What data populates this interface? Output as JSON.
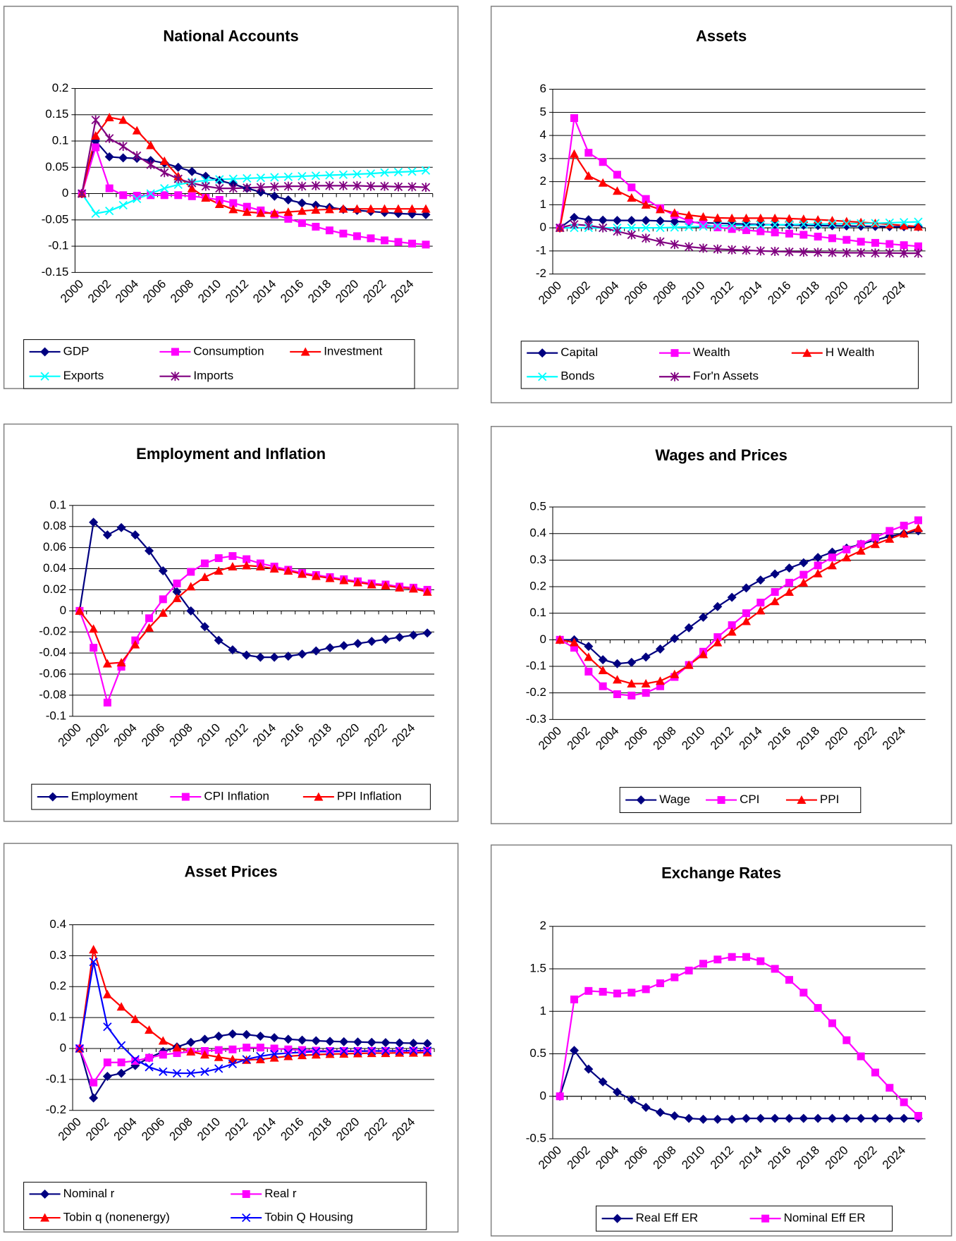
{
  "chart_data": [
    {
      "type": "line",
      "title": "National Accounts",
      "categories": [
        "2000",
        null,
        "2002",
        null,
        "2004",
        null,
        "2006",
        null,
        "2008",
        null,
        "2010",
        null,
        "2012",
        null,
        "2014",
        null,
        "2016",
        null,
        "2018",
        null,
        "2020",
        null,
        "2022",
        null,
        "2024",
        null
      ],
      "ylim": [
        -0.15,
        0.2
      ],
      "yticks": [
        -0.15,
        -0.1,
        -0.05,
        0,
        0.05,
        0.1,
        0.15,
        0.2
      ],
      "grid": true,
      "series": [
        {
          "name": "GDP",
          "color": "#000080",
          "marker": "diamond",
          "values": [
            0,
            0.1,
            0.07,
            0.068,
            0.067,
            0.063,
            0.058,
            0.05,
            0.042,
            0.033,
            0.025,
            0.018,
            0.01,
            0.003,
            -0.005,
            -0.012,
            -0.018,
            -0.022,
            -0.026,
            -0.03,
            -0.032,
            -0.034,
            -0.036,
            -0.038,
            -0.039,
            -0.04
          ]
        },
        {
          "name": "Consumption",
          "color": "#ff00ff",
          "marker": "square",
          "values": [
            0,
            0.088,
            0.01,
            -0.003,
            -0.004,
            -0.003,
            -0.003,
            -0.003,
            -0.005,
            -0.008,
            -0.012,
            -0.018,
            -0.025,
            -0.032,
            -0.04,
            -0.048,
            -0.056,
            -0.063,
            -0.07,
            -0.076,
            -0.081,
            -0.085,
            -0.089,
            -0.092,
            -0.095,
            -0.097
          ]
        },
        {
          "name": "Investment",
          "color": "#ff0000",
          "marker": "triangle",
          "values": [
            0,
            0.11,
            0.145,
            0.14,
            0.12,
            0.092,
            0.062,
            0.033,
            0.01,
            -0.008,
            -0.02,
            -0.03,
            -0.035,
            -0.037,
            -0.037,
            -0.035,
            -0.033,
            -0.031,
            -0.03,
            -0.029,
            -0.029,
            -0.029,
            -0.029,
            -0.029,
            -0.029,
            -0.029
          ]
        },
        {
          "name": "Exports",
          "color": "#00ffff",
          "marker": "x",
          "values": [
            0,
            -0.038,
            -0.033,
            -0.022,
            -0.01,
            0,
            0.01,
            0.017,
            0.022,
            0.025,
            0.027,
            0.028,
            0.029,
            0.03,
            0.031,
            0.032,
            0.033,
            0.034,
            0.035,
            0.036,
            0.037,
            0.038,
            0.04,
            0.041,
            0.042,
            0.044
          ]
        },
        {
          "name": "Imports",
          "color": "#800080",
          "marker": "asterisk",
          "values": [
            0,
            0.14,
            0.105,
            0.09,
            0.072,
            0.055,
            0.04,
            0.028,
            0.02,
            0.014,
            0.01,
            0.01,
            0.011,
            0.012,
            0.013,
            0.014,
            0.014,
            0.015,
            0.015,
            0.015,
            0.015,
            0.014,
            0.014,
            0.013,
            0.013,
            0.012
          ]
        }
      ]
    },
    {
      "type": "line",
      "title": "Assets",
      "categories": [
        "2000",
        null,
        "2002",
        null,
        "2004",
        null,
        "2006",
        null,
        "2008",
        null,
        "2010",
        null,
        "2012",
        null,
        "2014",
        null,
        "2016",
        null,
        "2018",
        null,
        "2020",
        null,
        "2022",
        null,
        "2024",
        null
      ],
      "ylim": [
        -2,
        6
      ],
      "yticks": [
        -2,
        -1,
        0,
        1,
        2,
        3,
        4,
        5,
        6
      ],
      "grid": true,
      "series": [
        {
          "name": "Capital",
          "color": "#000080",
          "marker": "diamond",
          "values": [
            0,
            0.45,
            0.35,
            0.33,
            0.32,
            0.32,
            0.32,
            0.3,
            0.28,
            0.25,
            0.22,
            0.2,
            0.18,
            0.16,
            0.14,
            0.13,
            0.12,
            0.11,
            0.1,
            0.09,
            0.08,
            0.07,
            0.06,
            0.05,
            0.05,
            0.04
          ]
        },
        {
          "name": "Wealth",
          "color": "#ff00ff",
          "marker": "square",
          "values": [
            0,
            4.75,
            3.25,
            2.85,
            2.3,
            1.75,
            1.25,
            0.85,
            0.55,
            0.3,
            0.15,
            0.02,
            -0.05,
            -0.1,
            -0.15,
            -0.2,
            -0.25,
            -0.3,
            -0.38,
            -0.45,
            -0.52,
            -0.6,
            -0.65,
            -0.7,
            -0.75,
            -0.8
          ]
        },
        {
          "name": "H Wealth",
          "color": "#ff0000",
          "marker": "triangle",
          "values": [
            0,
            3.2,
            2.25,
            1.95,
            1.6,
            1.3,
            1,
            0.8,
            0.65,
            0.55,
            0.48,
            0.43,
            0.42,
            0.42,
            0.42,
            0.42,
            0.4,
            0.38,
            0.35,
            0.32,
            0.28,
            0.24,
            0.2,
            0.15,
            0.1,
            0.05
          ]
        },
        {
          "name": "Bonds",
          "color": "#00ffff",
          "marker": "x",
          "values": [
            0,
            0,
            0,
            0,
            0,
            0,
            0,
            0,
            0.02,
            0.04,
            0.06,
            0.08,
            0.1,
            0.11,
            0.12,
            0.13,
            0.14,
            0.15,
            0.16,
            0.17,
            0.18,
            0.19,
            0.2,
            0.22,
            0.24,
            0.26
          ]
        },
        {
          "name": "For'n Assets",
          "color": "#800080",
          "marker": "asterisk",
          "values": [
            0,
            0.15,
            0.1,
            0,
            -0.15,
            -0.3,
            -0.45,
            -0.6,
            -0.72,
            -0.82,
            -0.88,
            -0.92,
            -0.95,
            -0.97,
            -1,
            -1.02,
            -1.04,
            -1.05,
            -1.06,
            -1.07,
            -1.08,
            -1.08,
            -1.09,
            -1.09,
            -1.1,
            -1.1
          ]
        }
      ]
    },
    {
      "type": "line",
      "title": "Employment and Inflation",
      "categories": [
        "2000",
        null,
        "2002",
        null,
        "2004",
        null,
        "2006",
        null,
        "2008",
        null,
        "2010",
        null,
        "2012",
        null,
        "2014",
        null,
        "2016",
        null,
        "2018",
        null,
        "2020",
        null,
        "2022",
        null,
        "2024",
        null
      ],
      "ylim": [
        -0.1,
        0.1
      ],
      "yticks": [
        -0.1,
        -0.08,
        -0.06,
        -0.04,
        -0.02,
        0,
        0.02,
        0.04,
        0.06,
        0.08,
        0.1
      ],
      "grid": true,
      "series": [
        {
          "name": "Employment",
          "color": "#000080",
          "marker": "diamond",
          "values": [
            0,
            0.084,
            0.072,
            0.079,
            0.072,
            0.057,
            0.038,
            0.018,
            0,
            -0.015,
            -0.028,
            -0.037,
            -0.042,
            -0.044,
            -0.044,
            -0.043,
            -0.041,
            -0.038,
            -0.035,
            -0.033,
            -0.031,
            -0.029,
            -0.027,
            -0.025,
            -0.023,
            -0.021
          ]
        },
        {
          "name": "CPI Inflation",
          "color": "#ff00ff",
          "marker": "square",
          "values": [
            0,
            -0.035,
            -0.087,
            -0.053,
            -0.028,
            -0.007,
            0.011,
            0.026,
            0.037,
            0.045,
            0.05,
            0.052,
            0.049,
            0.045,
            0.042,
            0.039,
            0.036,
            0.034,
            0.032,
            0.03,
            0.028,
            0.026,
            0.025,
            0.023,
            0.022,
            0.02
          ]
        },
        {
          "name": "PPI Inflation",
          "color": "#ff0000",
          "marker": "triangle",
          "values": [
            0,
            -0.017,
            -0.05,
            -0.049,
            -0.032,
            -0.016,
            -0.002,
            0.012,
            0.023,
            0.032,
            0.038,
            0.042,
            0.043,
            0.042,
            0.04,
            0.038,
            0.035,
            0.033,
            0.031,
            0.029,
            0.027,
            0.025,
            0.024,
            0.022,
            0.021,
            0.018
          ]
        }
      ]
    },
    {
      "type": "line",
      "title": "Wages and Prices",
      "categories": [
        "2000",
        null,
        "2002",
        null,
        "2004",
        null,
        "2006",
        null,
        "2008",
        null,
        "2010",
        null,
        "2012",
        null,
        "2014",
        null,
        "2016",
        null,
        "2018",
        null,
        "2020",
        null,
        "2022",
        null,
        "2024",
        null
      ],
      "ylim": [
        -0.3,
        0.5
      ],
      "yticks": [
        -0.3,
        -0.2,
        -0.1,
        0,
        0.1,
        0.2,
        0.3,
        0.4,
        0.5
      ],
      "grid": true,
      "series": [
        {
          "name": "Wage",
          "color": "#000080",
          "marker": "diamond",
          "values": [
            0,
            0,
            -0.025,
            -0.075,
            -0.09,
            -0.085,
            -0.065,
            -0.035,
            0.005,
            0.045,
            0.085,
            0.125,
            0.16,
            0.195,
            0.225,
            0.248,
            0.27,
            0.29,
            0.31,
            0.33,
            0.345,
            0.36,
            0.375,
            0.39,
            0.4,
            0.41
          ]
        },
        {
          "name": "CPI",
          "color": "#ff00ff",
          "marker": "square",
          "values": [
            0,
            -0.03,
            -0.12,
            -0.175,
            -0.205,
            -0.21,
            -0.2,
            -0.175,
            -0.14,
            -0.095,
            -0.045,
            0.01,
            0.055,
            0.1,
            0.14,
            0.18,
            0.215,
            0.245,
            0.28,
            0.31,
            0.34,
            0.36,
            0.385,
            0.41,
            0.43,
            0.45
          ]
        },
        {
          "name": "PPI",
          "color": "#ff0000",
          "marker": "triangle",
          "values": [
            0,
            -0.01,
            -0.065,
            -0.115,
            -0.15,
            -0.165,
            -0.165,
            -0.155,
            -0.13,
            -0.095,
            -0.055,
            -0.01,
            0.03,
            0.07,
            0.11,
            0.145,
            0.18,
            0.215,
            0.25,
            0.28,
            0.31,
            0.335,
            0.36,
            0.38,
            0.4,
            0.42
          ]
        }
      ]
    },
    {
      "type": "line",
      "title": "Asset Prices",
      "categories": [
        "2000",
        null,
        "2002",
        null,
        "2004",
        null,
        "2006",
        null,
        "2008",
        null,
        "2010",
        null,
        "2012",
        null,
        "2014",
        null,
        "2016",
        null,
        "2018",
        null,
        "2020",
        null,
        "2022",
        null,
        "2024",
        null
      ],
      "ylim": [
        -0.2,
        0.4
      ],
      "yticks": [
        -0.2,
        -0.1,
        0,
        0.1,
        0.2,
        0.3,
        0.4
      ],
      "grid": true,
      "series": [
        {
          "name": "Nominal r",
          "color": "#000080",
          "marker": "diamond",
          "values": [
            0,
            -0.16,
            -0.09,
            -0.08,
            -0.055,
            -0.03,
            -0.01,
            0.005,
            0.02,
            0.03,
            0.04,
            0.047,
            0.045,
            0.04,
            0.035,
            0.03,
            0.027,
            0.025,
            0.023,
            0.022,
            0.021,
            0.02,
            0.019,
            0.018,
            0.017,
            0.016
          ]
        },
        {
          "name": "Real r",
          "color": "#ff00ff",
          "marker": "square",
          "values": [
            0,
            -0.11,
            -0.045,
            -0.045,
            -0.04,
            -0.03,
            -0.02,
            -0.015,
            -0.01,
            -0.008,
            -0.005,
            -0.003,
            0.003,
            0.003,
            0,
            -0.003,
            -0.005,
            -0.007,
            -0.008,
            -0.008,
            -0.008,
            -0.008,
            -0.008,
            -0.008,
            -0.008,
            -0.008
          ]
        },
        {
          "name": "Tobin q (nonenergy)",
          "color": "#ff0000",
          "marker": "triangle",
          "values": [
            0,
            0.32,
            0.175,
            0.135,
            0.095,
            0.06,
            0.025,
            0.003,
            -0.01,
            -0.02,
            -0.028,
            -0.035,
            -0.037,
            -0.035,
            -0.03,
            -0.025,
            -0.022,
            -0.02,
            -0.018,
            -0.017,
            -0.016,
            -0.015,
            -0.015,
            -0.014,
            -0.014,
            -0.013
          ]
        },
        {
          "name": "Tobin Q Housing",
          "color": "#0000ff",
          "marker": "x",
          "values": [
            0,
            0.28,
            0.07,
            0.01,
            -0.035,
            -0.06,
            -0.075,
            -0.08,
            -0.08,
            -0.075,
            -0.065,
            -0.05,
            -0.035,
            -0.025,
            -0.018,
            -0.015,
            -0.012,
            -0.01,
            -0.01,
            -0.009,
            -0.009,
            -0.008,
            -0.008,
            -0.008,
            -0.007,
            -0.007
          ]
        }
      ]
    },
    {
      "type": "line",
      "title": "Exchange Rates",
      "categories": [
        "2000",
        null,
        "2002",
        null,
        "2004",
        null,
        "2006",
        null,
        "2008",
        null,
        "2010",
        null,
        "2012",
        null,
        "2014",
        null,
        "2016",
        null,
        "2018",
        null,
        "2020",
        null,
        "2022",
        null,
        "2024",
        null
      ],
      "ylim": [
        -0.5,
        2
      ],
      "yticks": [
        -0.5,
        0,
        0.5,
        1,
        1.5,
        2
      ],
      "grid": true,
      "series": [
        {
          "name": "Real Eff ER",
          "color": "#000080",
          "marker": "diamond",
          "values": [
            0,
            0.54,
            0.32,
            0.17,
            0.05,
            -0.04,
            -0.13,
            -0.19,
            -0.23,
            -0.26,
            -0.27,
            -0.27,
            -0.27,
            -0.26,
            -0.26,
            -0.26,
            -0.26,
            -0.26,
            -0.26,
            -0.26,
            -0.26,
            -0.26,
            -0.26,
            -0.26,
            -0.26,
            -0.26
          ]
        },
        {
          "name": "Nominal Eff ER",
          "color": "#ff00ff",
          "marker": "square",
          "values": [
            0,
            1.14,
            1.24,
            1.23,
            1.21,
            1.22,
            1.26,
            1.33,
            1.4,
            1.48,
            1.56,
            1.61,
            1.64,
            1.64,
            1.59,
            1.5,
            1.37,
            1.22,
            1.04,
            0.86,
            0.66,
            0.47,
            0.28,
            0.1,
            -0.07,
            -0.23
          ]
        }
      ]
    }
  ]
}
